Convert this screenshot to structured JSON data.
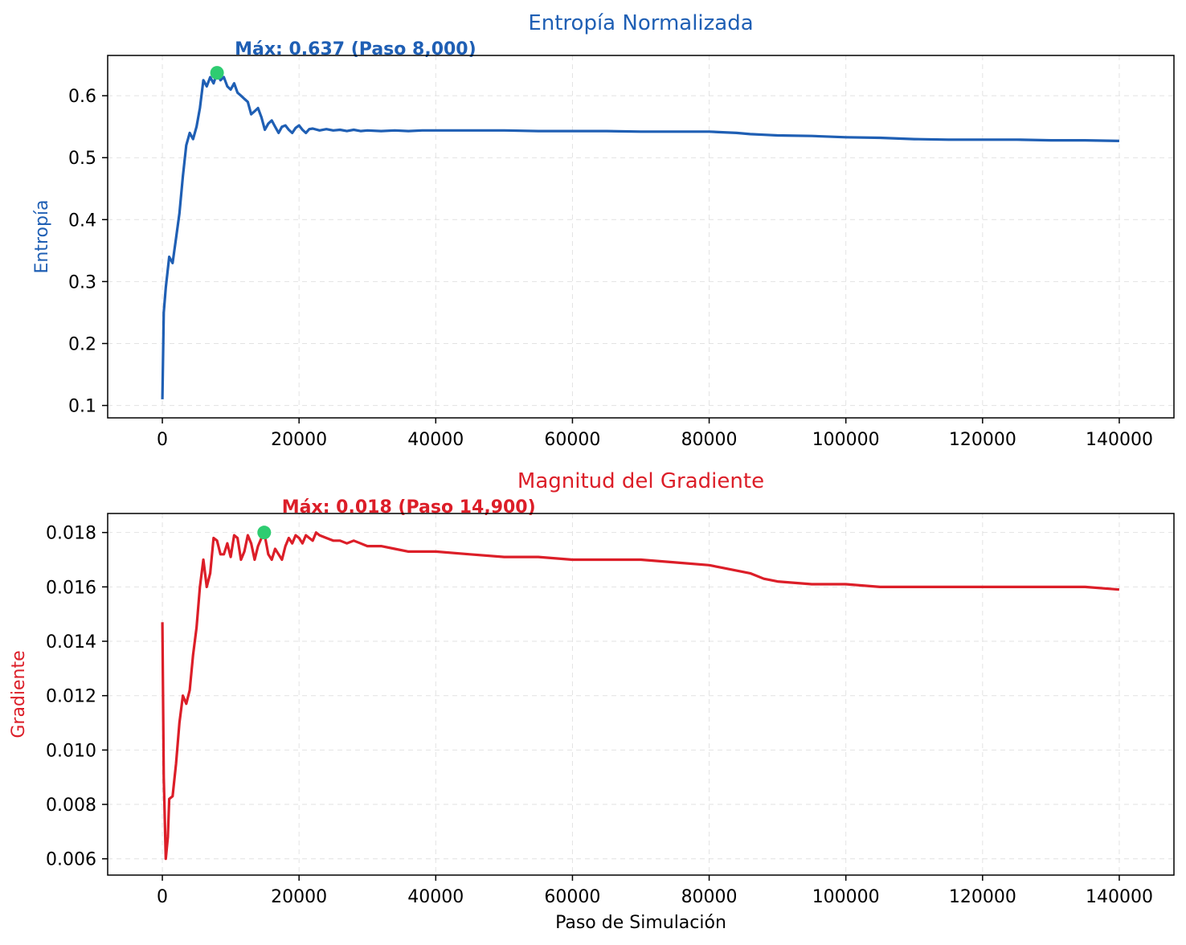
{
  "chart_data": [
    {
      "type": "line",
      "title": "Entropía Normalizada",
      "xlabel": "",
      "ylabel": "Entropía",
      "xlim": [
        -8000,
        148000
      ],
      "ylim": [
        0.08,
        0.665
      ],
      "xticks": [
        0,
        20000,
        40000,
        60000,
        80000,
        100000,
        120000,
        140000
      ],
      "xtick_labels": [
        "0",
        "20000",
        "40000",
        "60000",
        "80000",
        "100000",
        "120000",
        "140000"
      ],
      "yticks": [
        0.1,
        0.2,
        0.3,
        0.4,
        0.5,
        0.6
      ],
      "ytick_labels": [
        "0.1",
        "0.2",
        "0.3",
        "0.4",
        "0.5",
        "0.6"
      ],
      "grid": true,
      "color": "#1f5fb4",
      "marker_color": "#2ecc71",
      "series": [
        {
          "x": [
            0,
            200,
            500,
            1000,
            1500,
            2000,
            2500,
            3000,
            3500,
            4000,
            4500,
            5000,
            5500,
            6000,
            6500,
            7000,
            7500,
            8000,
            8500,
            9000,
            9500,
            10000,
            10500,
            11000,
            11500,
            12000,
            12500,
            13000,
            13500,
            14000,
            14500,
            15000,
            15500,
            16000,
            16500,
            17000,
            17500,
            18000,
            18500,
            19000,
            19500,
            20000,
            20500,
            21000,
            21500,
            22000,
            23000,
            24000,
            25000,
            26000,
            27000,
            28000,
            29000,
            30000,
            32000,
            34000,
            36000,
            38000,
            40000,
            45000,
            50000,
            55000,
            60000,
            65000,
            70000,
            75000,
            80000,
            82000,
            84000,
            86000,
            88000,
            90000,
            95000,
            100000,
            105000,
            110000,
            115000,
            120000,
            125000,
            130000,
            135000,
            140000
          ],
          "y": [
            0.11,
            0.25,
            0.29,
            0.34,
            0.33,
            0.37,
            0.41,
            0.47,
            0.52,
            0.54,
            0.53,
            0.55,
            0.58,
            0.625,
            0.615,
            0.63,
            0.62,
            0.637,
            0.625,
            0.63,
            0.615,
            0.61,
            0.62,
            0.605,
            0.6,
            0.595,
            0.59,
            0.57,
            0.575,
            0.58,
            0.565,
            0.545,
            0.555,
            0.56,
            0.55,
            0.54,
            0.55,
            0.552,
            0.545,
            0.54,
            0.548,
            0.552,
            0.545,
            0.54,
            0.546,
            0.547,
            0.544,
            0.546,
            0.544,
            0.545,
            0.543,
            0.545,
            0.543,
            0.544,
            0.543,
            0.544,
            0.543,
            0.544,
            0.544,
            0.544,
            0.544,
            0.543,
            0.543,
            0.543,
            0.542,
            0.542,
            0.542,
            0.541,
            0.54,
            0.538,
            0.537,
            0.536,
            0.535,
            0.533,
            0.532,
            0.53,
            0.529,
            0.529,
            0.529,
            0.528,
            0.528,
            0.527
          ]
        }
      ],
      "annotation": {
        "x": 8000,
        "y": 0.637,
        "text": "Máx: 0.637 (Paso 8,000)"
      }
    },
    {
      "type": "line",
      "title": "Magnitud del Gradiente",
      "xlabel": "Paso de Simulación",
      "ylabel": "Gradiente",
      "xlim": [
        -8000,
        148000
      ],
      "ylim": [
        0.0054,
        0.0187
      ],
      "xticks": [
        0,
        20000,
        40000,
        60000,
        80000,
        100000,
        120000,
        140000
      ],
      "xtick_labels": [
        "0",
        "20000",
        "40000",
        "60000",
        "80000",
        "100000",
        "120000",
        "140000"
      ],
      "yticks": [
        0.006,
        0.008,
        0.01,
        0.012,
        0.014,
        0.016,
        0.018
      ],
      "ytick_labels": [
        "0.006",
        "0.008",
        "0.010",
        "0.012",
        "0.014",
        "0.016",
        "0.018"
      ],
      "grid": true,
      "color": "#dc1e28",
      "marker_color": "#2ecc71",
      "series": [
        {
          "x": [
            0,
            200,
            500,
            800,
            1000,
            1500,
            2000,
            2500,
            3000,
            3500,
            4000,
            4500,
            5000,
            5500,
            6000,
            6500,
            7000,
            7500,
            8000,
            8500,
            9000,
            9500,
            10000,
            10500,
            11000,
            11500,
            12000,
            12500,
            13000,
            13500,
            14000,
            14500,
            14900,
            15500,
            16000,
            16500,
            17000,
            17500,
            18000,
            18500,
            19000,
            19500,
            20000,
            20500,
            21000,
            21500,
            22000,
            22500,
            23000,
            24000,
            25000,
            26000,
            27000,
            28000,
            29000,
            30000,
            32000,
            34000,
            36000,
            38000,
            40000,
            45000,
            50000,
            55000,
            60000,
            65000,
            70000,
            75000,
            80000,
            82000,
            84000,
            86000,
            88000,
            90000,
            95000,
            100000,
            105000,
            110000,
            115000,
            120000,
            125000,
            130000,
            135000,
            140000
          ],
          "y": [
            0.0147,
            0.009,
            0.006,
            0.0068,
            0.0082,
            0.0083,
            0.0095,
            0.011,
            0.012,
            0.0117,
            0.0122,
            0.0135,
            0.0145,
            0.016,
            0.017,
            0.016,
            0.0165,
            0.0178,
            0.0177,
            0.0172,
            0.0172,
            0.0176,
            0.0171,
            0.0179,
            0.0178,
            0.017,
            0.0173,
            0.0179,
            0.0176,
            0.017,
            0.0175,
            0.0178,
            0.018,
            0.0172,
            0.017,
            0.0174,
            0.0172,
            0.017,
            0.0175,
            0.0178,
            0.0176,
            0.0179,
            0.0178,
            0.0176,
            0.0179,
            0.0178,
            0.0177,
            0.018,
            0.0179,
            0.0178,
            0.0177,
            0.0177,
            0.0176,
            0.0177,
            0.0176,
            0.0175,
            0.0175,
            0.0174,
            0.0173,
            0.0173,
            0.0173,
            0.0172,
            0.0171,
            0.0171,
            0.017,
            0.017,
            0.017,
            0.0169,
            0.0168,
            0.0167,
            0.0166,
            0.0165,
            0.0163,
            0.0162,
            0.0161,
            0.0161,
            0.016,
            0.016,
            0.016,
            0.016,
            0.016,
            0.016,
            0.016,
            0.0159
          ]
        }
      ],
      "annotation": {
        "x": 14900,
        "y": 0.018,
        "text": "Máx: 0.018 (Paso 14,900)"
      }
    }
  ]
}
